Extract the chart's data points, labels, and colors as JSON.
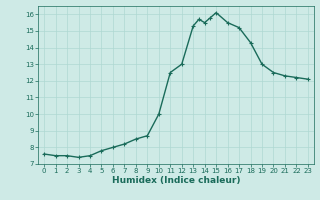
{
  "x": [
    0,
    1,
    2,
    3,
    4,
    5,
    6,
    7,
    8,
    9,
    10,
    11,
    12,
    13,
    13.5,
    14,
    14.5,
    15,
    16,
    17,
    18,
    19,
    20,
    21,
    22,
    23
  ],
  "y": [
    7.6,
    7.5,
    7.5,
    7.4,
    7.5,
    7.8,
    8.0,
    8.2,
    8.5,
    8.7,
    10.0,
    12.5,
    13.0,
    15.3,
    15.7,
    15.5,
    15.8,
    16.1,
    15.5,
    15.2,
    14.3,
    13.0,
    12.5,
    12.3,
    12.2,
    12.1
  ],
  "xlabel": "Humidex (Indice chaleur)",
  "ylim": [
    7,
    16.5
  ],
  "xlim": [
    -0.5,
    23.5
  ],
  "yticks": [
    7,
    8,
    9,
    10,
    11,
    12,
    13,
    14,
    15,
    16
  ],
  "xticks": [
    0,
    1,
    2,
    3,
    4,
    5,
    6,
    7,
    8,
    9,
    10,
    11,
    12,
    13,
    14,
    15,
    16,
    17,
    18,
    19,
    20,
    21,
    22,
    23
  ],
  "line_color": "#1a6b5a",
  "bg_color": "#ceeae6",
  "grid_color": "#afd8d2",
  "marker": "+",
  "marker_size": 3,
  "line_width": 1.0,
  "tick_label_fontsize": 5.0,
  "xlabel_fontsize": 6.5
}
